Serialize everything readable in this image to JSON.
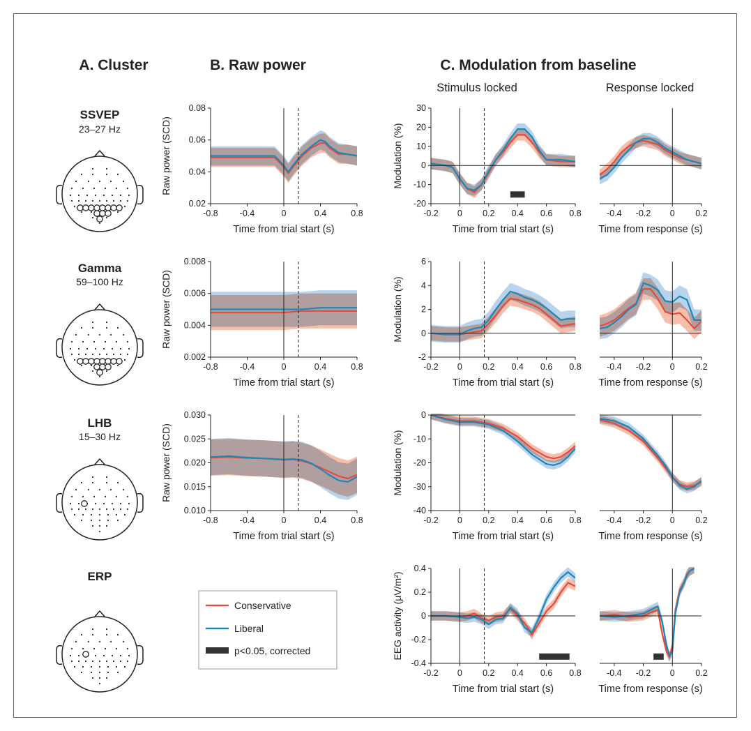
{
  "headers": {
    "a": "A. Cluster",
    "b": "B. Raw power",
    "c": "C. Modulation from baseline",
    "c_stim": "Stimulus locked",
    "c_resp": "Response locked"
  },
  "clusters": [
    {
      "name": "SSVEP",
      "band": "23–27 Hz"
    },
    {
      "name": "Gamma",
      "band": "59–100 Hz"
    },
    {
      "name": "LHB",
      "band": "15–30 Hz"
    },
    {
      "name": "ERP",
      "band": ""
    }
  ],
  "legend": {
    "conservative": "Conservative",
    "liberal": "Liberal",
    "sig": "p<0.05, corrected"
  },
  "colors": {
    "conservative": "#e64a3f",
    "liberal": "#1f86b8",
    "cons_band": "#f2a98f",
    "lib_band": "#9fc6e6",
    "overlap": "#a99aa6",
    "sig": "#333333"
  },
  "chart_data": [
    {
      "id": "ssvep_raw",
      "type": "line",
      "xlabel": "Time from trial start (s)",
      "ylabel": "Raw power (SCD)",
      "xlim": [
        -0.8,
        0.8
      ],
      "ylim": [
        0.02,
        0.08
      ],
      "xticks": [
        "-0.8",
        "-0.4",
        "0",
        "0.4",
        "0.8"
      ],
      "yticks": [
        "0.02",
        "0.04",
        "0.06",
        "0.08"
      ],
      "vlines": [
        0
      ],
      "dashed": [
        0.16
      ],
      "x": [
        -0.8,
        -0.6,
        -0.4,
        -0.2,
        -0.1,
        0,
        0.05,
        0.1,
        0.2,
        0.3,
        0.4,
        0.45,
        0.5,
        0.6,
        0.7,
        0.8
      ],
      "series": [
        {
          "name": "Conservative",
          "values": [
            0.049,
            0.049,
            0.049,
            0.049,
            0.049,
            0.043,
            0.039,
            0.043,
            0.05,
            0.055,
            0.058,
            0.058,
            0.055,
            0.051,
            0.051,
            0.05
          ],
          "band": 0.006
        },
        {
          "name": "Liberal",
          "values": [
            0.05,
            0.05,
            0.05,
            0.05,
            0.05,
            0.044,
            0.04,
            0.044,
            0.051,
            0.056,
            0.06,
            0.059,
            0.056,
            0.052,
            0.051,
            0.05
          ],
          "band": 0.006
        }
      ]
    },
    {
      "id": "ssvep_stim",
      "type": "line",
      "xlabel": "Time from trial start (s)",
      "ylabel": "Modulation (%)",
      "xlim": [
        -0.2,
        0.8
      ],
      "ylim": [
        -20,
        30
      ],
      "xticks": [
        "-0.2",
        "0",
        "0.2",
        "0.4",
        "0.6",
        "0.8"
      ],
      "yticks": [
        "-20",
        "-10",
        "0",
        "10",
        "20",
        "30"
      ],
      "vlines": [
        0
      ],
      "dashed": [
        0.17
      ],
      "hline": 0,
      "x": [
        -0.2,
        -0.1,
        -0.05,
        0,
        0.05,
        0.1,
        0.15,
        0.2,
        0.25,
        0.3,
        0.35,
        0.4,
        0.45,
        0.5,
        0.55,
        0.6,
        0.7,
        0.8
      ],
      "series": [
        {
          "name": "Conservative",
          "values": [
            1,
            0,
            -1,
            -7,
            -12,
            -14,
            -10,
            -4,
            3,
            7,
            12,
            16,
            16,
            12,
            7,
            3,
            2,
            2
          ],
          "band": 3
        },
        {
          "name": "Liberal",
          "values": [
            1,
            0,
            -1,
            -7,
            -12,
            -13,
            -10,
            -3,
            3,
            8,
            14,
            19,
            19,
            15,
            8,
            3,
            3,
            2
          ],
          "band": 3
        }
      ],
      "sig": [
        [
          0.35,
          0.45
        ]
      ]
    },
    {
      "id": "ssvep_resp",
      "type": "line",
      "xlabel": "Time from response (s)",
      "ylabel": "",
      "xlim": [
        -0.5,
        0.2
      ],
      "ylim": [
        -20,
        30
      ],
      "xticks": [
        "-0.4",
        "-0.2",
        "0",
        "0.2"
      ],
      "yticks": [],
      "vlines": [
        0
      ],
      "dashed": [],
      "hline": 0,
      "x": [
        -0.5,
        -0.45,
        -0.4,
        -0.35,
        -0.3,
        -0.25,
        -0.2,
        -0.15,
        -0.1,
        -0.05,
        0,
        0.05,
        0.1,
        0.15,
        0.2
      ],
      "series": [
        {
          "name": "Conservative",
          "values": [
            -5,
            -2,
            2,
            7,
            10,
            12,
            13,
            12,
            11,
            8,
            6,
            4,
            3,
            2,
            1
          ],
          "band": 3
        },
        {
          "name": "Liberal",
          "values": [
            -7,
            -5,
            -1,
            4,
            8,
            12,
            14,
            14,
            12,
            9,
            7,
            5,
            3,
            2,
            1
          ],
          "band": 3
        }
      ]
    },
    {
      "id": "gamma_raw",
      "type": "line",
      "xlabel": "Time from trial start (s)",
      "ylabel": "Raw power (SCD)",
      "xlim": [
        -0.8,
        0.8
      ],
      "ylim": [
        0.002,
        0.008
      ],
      "xticks": [
        "-0.8",
        "-0.4",
        "0",
        "0.4",
        "0.8"
      ],
      "yticks": [
        "0.002",
        "0.004",
        "0.006",
        "0.008"
      ],
      "vlines": [
        0
      ],
      "dashed": [
        0.16
      ],
      "x": [
        -0.8,
        -0.4,
        0,
        0.2,
        0.4,
        0.8
      ],
      "series": [
        {
          "name": "Conservative",
          "values": [
            0.0048,
            0.0048,
            0.0048,
            0.0049,
            0.0049,
            0.0049
          ],
          "band": 0.0011
        },
        {
          "name": "Liberal",
          "values": [
            0.005,
            0.005,
            0.005,
            0.005,
            0.0051,
            0.0051
          ],
          "band": 0.0011
        }
      ]
    },
    {
      "id": "gamma_stim",
      "type": "line",
      "xlabel": "Time from trial start (s)",
      "ylabel": "Modulation (%)",
      "xlim": [
        -0.2,
        0.8
      ],
      "ylim": [
        -2,
        6
      ],
      "xticks": [
        "-0.2",
        "0",
        "0.2",
        "0.4",
        "0.6",
        "0.8"
      ],
      "yticks": [
        "-2",
        "0",
        "2",
        "4",
        "6"
      ],
      "vlines": [
        0
      ],
      "dashed": [
        0.17
      ],
      "hline": 0,
      "x": [
        -0.2,
        -0.1,
        0,
        0.05,
        0.1,
        0.15,
        0.2,
        0.25,
        0.3,
        0.35,
        0.4,
        0.45,
        0.5,
        0.55,
        0.6,
        0.65,
        0.7,
        0.75,
        0.8
      ],
      "series": [
        {
          "name": "Conservative",
          "values": [
            0,
            -0.1,
            -0.1,
            0,
            0.1,
            0.2,
            0.8,
            1.5,
            2.3,
            2.9,
            2.8,
            2.6,
            2.4,
            2.1,
            1.6,
            1.1,
            0.6,
            0.7,
            0.8
          ],
          "band": 0.6
        },
        {
          "name": "Liberal",
          "values": [
            0,
            -0.1,
            -0.1,
            0.2,
            0.4,
            0.5,
            1.1,
            2.0,
            2.8,
            3.5,
            3.3,
            3.0,
            2.8,
            2.5,
            2.1,
            1.6,
            1.1,
            1.2,
            1.2
          ],
          "band": 0.7
        }
      ]
    },
    {
      "id": "gamma_resp",
      "type": "line",
      "xlabel": "Time from response (s)",
      "ylabel": "",
      "xlim": [
        -0.5,
        0.2
      ],
      "ylim": [
        -2,
        6
      ],
      "xticks": [
        "-0.4",
        "-0.2",
        "0",
        "0.2"
      ],
      "yticks": [],
      "vlines": [
        0
      ],
      "dashed": [],
      "hline": 0,
      "x": [
        -0.5,
        -0.45,
        -0.4,
        -0.35,
        -0.3,
        -0.25,
        -0.2,
        -0.15,
        -0.1,
        -0.05,
        0,
        0.05,
        0.1,
        0.15,
        0.2
      ],
      "series": [
        {
          "name": "Conservative",
          "values": [
            0.6,
            0.8,
            1.1,
            1.6,
            2.1,
            2.5,
            3.7,
            3.7,
            2.9,
            1.8,
            1.6,
            1.7,
            1.1,
            0.4,
            1.0
          ],
          "band": 0.9
        },
        {
          "name": "Liberal",
          "values": [
            0.4,
            0.5,
            0.9,
            1.4,
            2.0,
            2.4,
            4.2,
            4.0,
            3.6,
            2.7,
            2.6,
            3.1,
            2.8,
            1.1,
            1.1
          ],
          "band": 0.9
        }
      ]
    },
    {
      "id": "lhb_raw",
      "type": "line",
      "xlabel": "Time from trial start (s)",
      "ylabel": "Raw power (SCD)",
      "xlim": [
        -0.8,
        0.8
      ],
      "ylim": [
        0.01,
        0.03
      ],
      "xticks": [
        "-0.8",
        "-0.4",
        "0",
        "0.4",
        "0.8"
      ],
      "yticks": [
        "0.010",
        "0.015",
        "0.020",
        "0.025",
        "0.030"
      ],
      "vlines": [
        0
      ],
      "dashed": [
        0.16
      ],
      "x": [
        -0.8,
        -0.6,
        -0.4,
        -0.2,
        0,
        0.1,
        0.2,
        0.3,
        0.4,
        0.5,
        0.6,
        0.7,
        0.8
      ],
      "series": [
        {
          "name": "Conservative",
          "values": [
            0.0211,
            0.0212,
            0.021,
            0.0209,
            0.0206,
            0.0207,
            0.0204,
            0.0198,
            0.019,
            0.0181,
            0.0172,
            0.0167,
            0.0175
          ],
          "band": 0.0038
        },
        {
          "name": "Liberal",
          "values": [
            0.0212,
            0.0214,
            0.0211,
            0.0209,
            0.0207,
            0.0208,
            0.0206,
            0.0199,
            0.0187,
            0.0174,
            0.0163,
            0.016,
            0.0171
          ],
          "band": 0.0038
        }
      ]
    },
    {
      "id": "lhb_stim",
      "type": "line",
      "xlabel": "Time from trial start (s)",
      "ylabel": "Modulation (%)",
      "xlim": [
        -0.2,
        0.8
      ],
      "ylim": [
        -40,
        0
      ],
      "xticks": [
        "-0.2",
        "0",
        "0.2",
        "0.4",
        "0.6",
        "0.8"
      ],
      "yticks": [
        "-40",
        "-30",
        "-20",
        "-10",
        "0"
      ],
      "vlines": [
        0
      ],
      "dashed": [
        0.17
      ],
      "hline": 0,
      "x": [
        -0.2,
        -0.1,
        0,
        0.1,
        0.2,
        0.3,
        0.4,
        0.5,
        0.6,
        0.65,
        0.7,
        0.75,
        0.8
      ],
      "series": [
        {
          "name": "Conservative",
          "values": [
            0,
            -1.5,
            -2.5,
            -2.5,
            -3.5,
            -5.5,
            -9,
            -14,
            -17.5,
            -18.2,
            -17.5,
            -15.5,
            -13
          ],
          "band": 1.8
        },
        {
          "name": "Liberal",
          "values": [
            0,
            -1.8,
            -3,
            -3,
            -4,
            -6.5,
            -11,
            -16.5,
            -20.5,
            -21,
            -20,
            -17.5,
            -14
          ],
          "band": 1.8
        }
      ]
    },
    {
      "id": "lhb_resp",
      "type": "line",
      "xlabel": "Time from response (s)",
      "ylabel": "",
      "xlim": [
        -0.5,
        0.2
      ],
      "ylim": [
        -40,
        0
      ],
      "xticks": [
        "-0.4",
        "-0.2",
        "0",
        "0.2"
      ],
      "yticks": [],
      "vlines": [
        0
      ],
      "dashed": [],
      "hline": 0,
      "x": [
        -0.5,
        -0.4,
        -0.3,
        -0.2,
        -0.1,
        -0.05,
        0,
        0.05,
        0.1,
        0.15,
        0.2
      ],
      "series": [
        {
          "name": "Conservative",
          "values": [
            -2,
            -3.5,
            -6.5,
            -11,
            -18,
            -22,
            -26,
            -29,
            -30,
            -29.5,
            -28
          ],
          "band": 1.8
        },
        {
          "name": "Liberal",
          "values": [
            -1.5,
            -2.5,
            -5,
            -10,
            -17,
            -21,
            -26,
            -29.5,
            -31,
            -30,
            -27.5
          ],
          "band": 1.8
        }
      ]
    },
    {
      "id": "erp_stim",
      "type": "line",
      "xlabel": "Time from trial start (s)",
      "ylabel": "EEG activity (μV/m²)",
      "xlim": [
        -0.2,
        0.8
      ],
      "ylim": [
        -0.4,
        0.4
      ],
      "xticks": [
        "-0.2",
        "0",
        "0.2",
        "0.4",
        "0.6",
        "0.8"
      ],
      "yticks": [
        "-0.4",
        "-0.2",
        "0",
        "0.2",
        "0.4"
      ],
      "vlines": [
        0
      ],
      "dashed": [
        0.17
      ],
      "hline": 0,
      "x": [
        -0.2,
        -0.1,
        0,
        0.05,
        0.1,
        0.15,
        0.2,
        0.25,
        0.3,
        0.35,
        0.4,
        0.45,
        0.5,
        0.55,
        0.6,
        0.65,
        0.7,
        0.75,
        0.8
      ],
      "series": [
        {
          "name": "Conservative",
          "values": [
            0,
            0,
            -0.01,
            0,
            0.02,
            -0.02,
            -0.04,
            -0.01,
            0.0,
            0.06,
            0.0,
            -0.06,
            -0.16,
            -0.06,
            0.04,
            0.1,
            0.2,
            0.28,
            0.25
          ],
          "band": 0.04
        },
        {
          "name": "Liberal",
          "values": [
            0,
            0,
            -0.01,
            -0.02,
            -0.01,
            -0.03,
            -0.07,
            -0.03,
            -0.02,
            0.07,
            0.02,
            -0.1,
            -0.14,
            -0.01,
            0.14,
            0.24,
            0.32,
            0.37,
            0.32
          ],
          "band": 0.04
        }
      ],
      "sig": [
        [
          0.55,
          0.76
        ]
      ]
    },
    {
      "id": "erp_resp",
      "type": "line",
      "xlabel": "Time from response (s)",
      "ylabel": "",
      "xlim": [
        -0.5,
        0.2
      ],
      "ylim": [
        -0.4,
        0.4
      ],
      "xticks": [
        "-0.4",
        "-0.2",
        "0",
        "0.2"
      ],
      "yticks": [],
      "vlines": [
        0
      ],
      "dashed": [],
      "hline": 0,
      "x": [
        -0.5,
        -0.4,
        -0.3,
        -0.2,
        -0.15,
        -0.1,
        -0.07,
        -0.04,
        -0.02,
        0,
        0.02,
        0.05,
        0.08,
        0.1,
        0.12,
        0.15
      ],
      "series": [
        {
          "name": "Conservative",
          "values": [
            0.0,
            0.01,
            -0.01,
            0.0,
            0.03,
            0.05,
            -0.15,
            -0.3,
            -0.35,
            -0.25,
            0.05,
            0.22,
            0.28,
            0.35,
            0.38,
            0.4
          ],
          "band": 0.04
        },
        {
          "name": "Liberal",
          "values": [
            0.0,
            -0.01,
            0.0,
            0.02,
            0.05,
            0.08,
            -0.05,
            -0.25,
            -0.34,
            -0.3,
            0.02,
            0.2,
            0.28,
            0.34,
            0.38,
            0.4
          ],
          "band": 0.04
        }
      ],
      "sig": [
        [
          -0.13,
          -0.06
        ]
      ]
    }
  ]
}
